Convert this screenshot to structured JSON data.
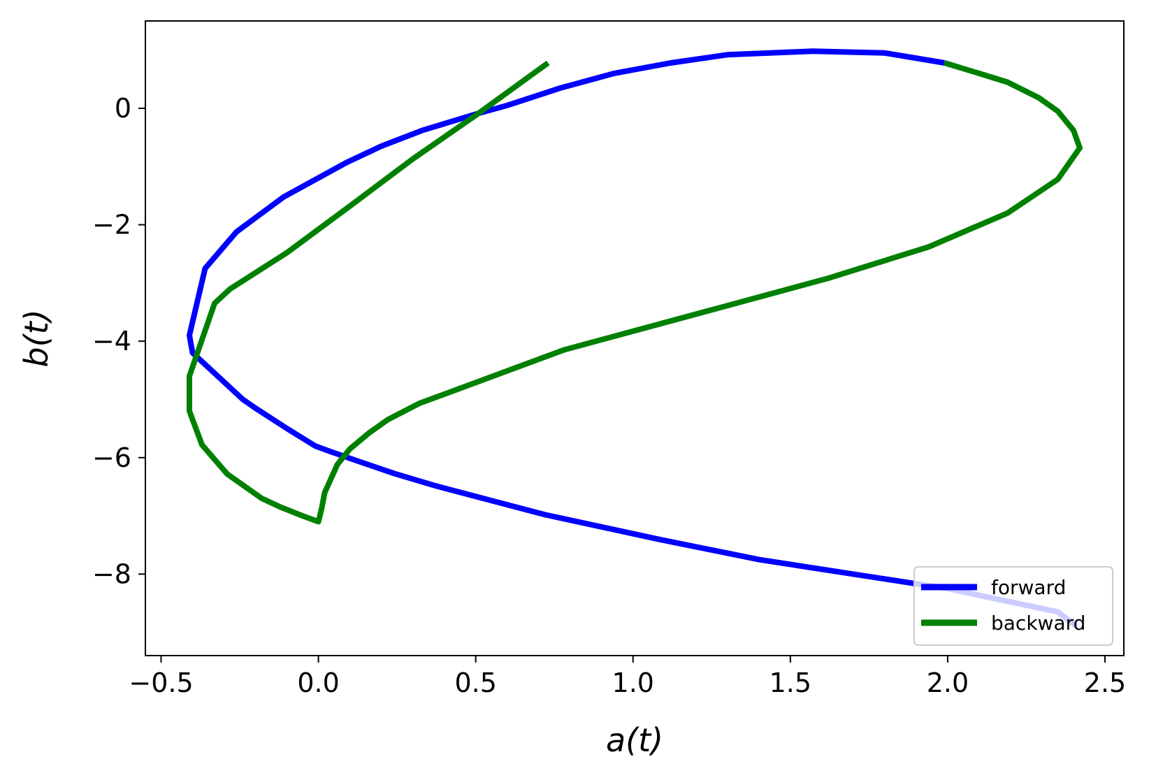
{
  "chart_data": {
    "type": "line",
    "title": "",
    "xlabel": "a(t)",
    "ylabel": "b(t)",
    "xlim": [
      -0.55,
      2.56
    ],
    "ylim": [
      -9.4,
      1.5
    ],
    "xticks": [
      -0.5,
      0.0,
      0.5,
      1.0,
      1.5,
      2.0,
      2.5
    ],
    "xtick_labels": [
      "−0.5",
      "0.0",
      "0.5",
      "1.0",
      "1.5",
      "2.0",
      "2.5"
    ],
    "yticks": [
      0,
      -2,
      -4,
      -6,
      -8
    ],
    "ytick_labels": [
      "0",
      "−2",
      "−4",
      "−6",
      "−8"
    ],
    "grid": false,
    "legend_position": "lower right",
    "series": [
      {
        "name": "forward",
        "color": "#0000ff",
        "x": [
          2.41,
          2.35,
          2.0,
          1.4,
          1.08,
          0.72,
          0.37,
          0.24,
          0.12,
          0.04,
          -0.01,
          -0.1,
          -0.2,
          -0.24,
          -0.4,
          -0.41,
          -0.36,
          -0.26,
          -0.11,
          0.09,
          0.2,
          0.33,
          0.5,
          0.6,
          0.77,
          0.94,
          1.12,
          1.3,
          1.57,
          1.8,
          1.99
        ],
        "y": [
          -8.9,
          -8.65,
          -8.25,
          -7.75,
          -7.4,
          -6.98,
          -6.48,
          -6.27,
          -6.05,
          -5.9,
          -5.8,
          -5.5,
          -5.15,
          -5.0,
          -4.2,
          -3.9,
          -2.75,
          -2.12,
          -1.52,
          -0.93,
          -0.65,
          -0.38,
          -0.1,
          0.05,
          0.35,
          0.6,
          0.78,
          0.92,
          0.98,
          0.95,
          0.78
        ]
      },
      {
        "name": "backward",
        "color": "#008000",
        "x": [
          1.99,
          2.1,
          2.19,
          2.29,
          2.35,
          2.4,
          2.42,
          2.35,
          2.19,
          1.94,
          1.62,
          0.78,
          0.32,
          0.22,
          0.16,
          0.1,
          0.06,
          0.04,
          0.02,
          0.01,
          0.0,
          -0.01,
          -0.05,
          -0.12,
          -0.18,
          -0.29,
          -0.37,
          -0.41,
          -0.41,
          -0.33,
          -0.28,
          -0.1,
          0.1,
          0.3,
          0.5,
          0.73
        ],
        "y": [
          0.78,
          0.6,
          0.45,
          0.18,
          -0.05,
          -0.38,
          -0.68,
          -1.22,
          -1.8,
          -2.38,
          -2.92,
          -4.15,
          -5.07,
          -5.35,
          -5.58,
          -5.85,
          -6.12,
          -6.36,
          -6.6,
          -6.88,
          -7.1,
          -7.08,
          -7.0,
          -6.85,
          -6.7,
          -6.28,
          -5.78,
          -5.2,
          -4.6,
          -3.35,
          -3.1,
          -2.48,
          -1.68,
          -0.87,
          -0.12,
          0.78
        ]
      }
    ]
  }
}
